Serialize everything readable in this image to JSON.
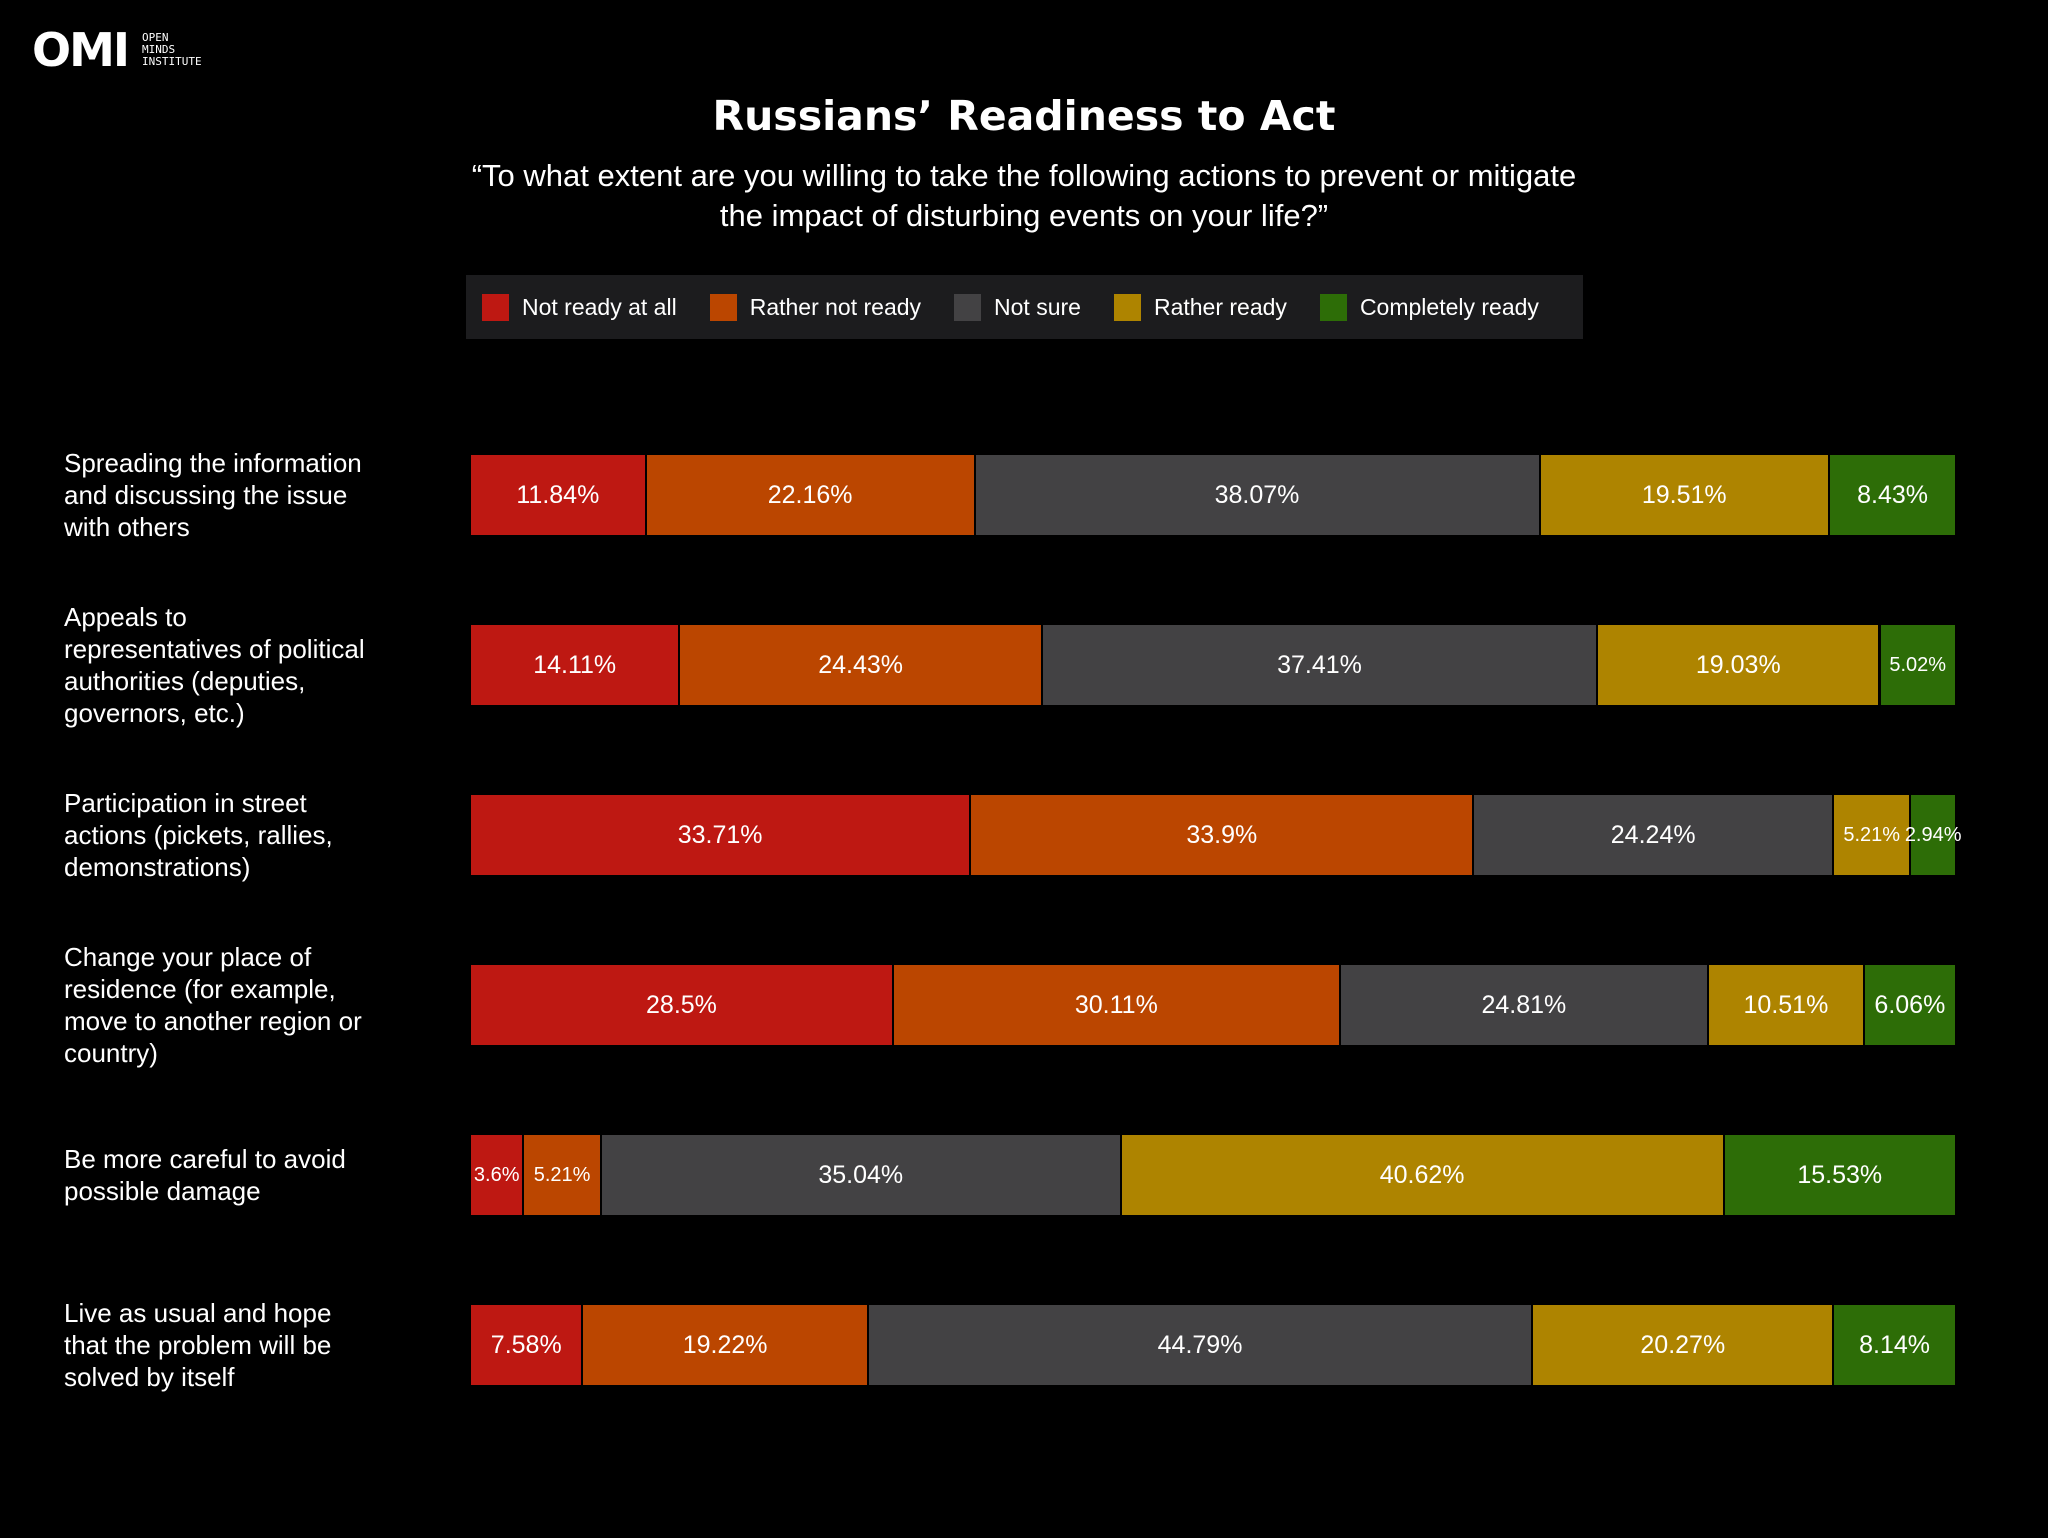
{
  "logo": {
    "mark": "OMI",
    "lines": [
      "OPEN",
      "MINDS",
      "INSTITUTE"
    ]
  },
  "chart_data": {
    "type": "bar",
    "orientation": "horizontal-stacked-100",
    "title": "Russians’ Readiness to Act",
    "subtitle_lines": [
      "“To what extent are you willing to take the following actions to prevent or mitigate",
      "the impact of disturbing events on your life?”"
    ],
    "legend": [
      {
        "label": "Not ready at all",
        "color": "#be1812"
      },
      {
        "label": "Rather not ready",
        "color": "#bb4600"
      },
      {
        "label": "Not sure",
        "color": "#434244"
      },
      {
        "label": "Rather ready",
        "color": "#ae8400"
      },
      {
        "label": "Completely ready",
        "color": "#2d6d07"
      }
    ],
    "categories": [
      [
        "Spreading the information",
        "and discussing the issue",
        "with others"
      ],
      [
        "Appeals to",
        "representatives of political",
        "authorities (deputies,",
        "governors, etc.)"
      ],
      [
        "Participation in street",
        "actions (pickets, rallies,",
        "demonstrations)"
      ],
      [
        "Change your place of",
        "residence (for example,",
        "move to another region or",
        "country)"
      ],
      [
        "Be more careful to avoid",
        "possible damage"
      ],
      [
        "Live as usual and hope",
        "that the problem will be",
        "solved by itself"
      ]
    ],
    "series": [
      {
        "name": "Not ready at all",
        "values": [
          11.84,
          14.11,
          33.71,
          28.5,
          3.6,
          7.58
        ],
        "labels": [
          "11.84%",
          "14.11%",
          "33.71%",
          "28.5%",
          "3.6%",
          "7.58%"
        ]
      },
      {
        "name": "Rather not ready",
        "values": [
          22.16,
          24.43,
          33.9,
          30.11,
          5.21,
          19.22
        ],
        "labels": [
          "22.16%",
          "24.43%",
          "33.9%",
          "30.11%",
          "5.21%",
          "19.22%"
        ]
      },
      {
        "name": "Not sure",
        "values": [
          38.07,
          37.41,
          24.24,
          24.81,
          35.04,
          44.79
        ],
        "labels": [
          "38.07%",
          "37.41%",
          "24.24%",
          "24.81%",
          "35.04%",
          "44.79%"
        ]
      },
      {
        "name": "Rather ready",
        "values": [
          19.51,
          19.03,
          5.21,
          10.51,
          40.62,
          20.27
        ],
        "labels": [
          "19.51%",
          "19.03%",
          "5.21%",
          "10.51%",
          "40.62%",
          "20.27%"
        ]
      },
      {
        "name": "Completely ready",
        "values": [
          8.43,
          5.02,
          2.94,
          6.06,
          15.53,
          8.14
        ],
        "labels": [
          "8.43%",
          "5.02%",
          "2.94%",
          "6.06%",
          "15.53%",
          "8.14%"
        ]
      }
    ],
    "xlim": [
      0,
      100
    ],
    "grid": false,
    "legend_position": "top-center"
  }
}
